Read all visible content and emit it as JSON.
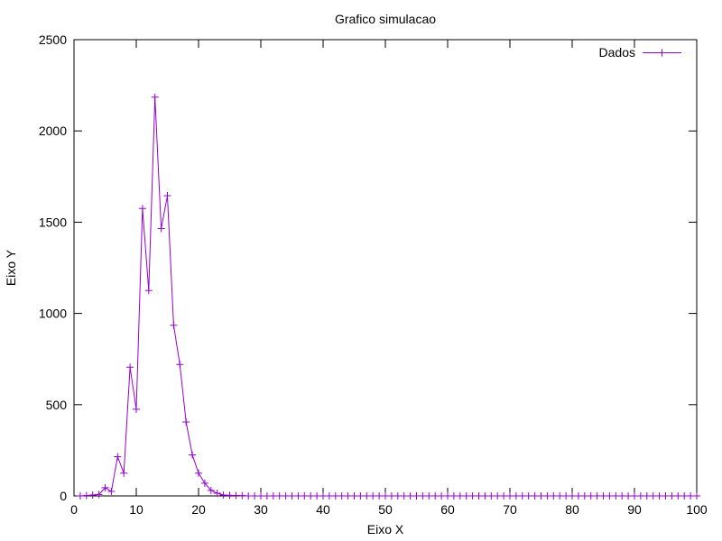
{
  "chart_data": {
    "type": "line",
    "title": "Grafico simulacao",
    "xlabel": "Eixo X",
    "ylabel": "Eixo Y",
    "xlim": [
      0,
      100
    ],
    "ylim": [
      0,
      2500
    ],
    "x_ticks": [
      "0",
      "10",
      "20",
      "30",
      "40",
      "50",
      "60",
      "70",
      "80",
      "90",
      "100"
    ],
    "y_ticks": [
      "0",
      "500",
      "1000",
      "1500",
      "2000",
      "2500"
    ],
    "grid": false,
    "legend_position": "top-right",
    "series": [
      {
        "name": "Dados",
        "color": "#9400d3",
        "marker": "plus",
        "x": [
          1,
          2,
          3,
          4,
          5,
          6,
          7,
          8,
          9,
          10,
          11,
          12,
          13,
          14,
          15,
          16,
          17,
          18,
          19,
          20,
          21,
          22,
          23,
          24,
          25,
          26,
          27,
          28,
          29,
          30,
          31,
          32,
          33,
          34,
          35,
          36,
          37,
          38,
          39,
          40,
          41,
          42,
          43,
          44,
          45,
          46,
          47,
          48,
          49,
          50,
          51,
          52,
          53,
          54,
          55,
          56,
          57,
          58,
          59,
          60,
          61,
          62,
          63,
          64,
          65,
          66,
          67,
          68,
          69,
          70,
          71,
          72,
          73,
          74,
          75,
          76,
          77,
          78,
          79,
          80,
          81,
          82,
          83,
          84,
          85,
          86,
          87,
          88,
          89,
          90,
          91,
          92,
          93,
          94,
          95,
          96,
          97,
          98,
          99,
          100
        ],
        "y": [
          0,
          2,
          5,
          8,
          45,
          25,
          215,
          125,
          705,
          475,
          1575,
          1125,
          2185,
          1465,
          1645,
          935,
          720,
          405,
          225,
          125,
          70,
          30,
          15,
          5,
          3,
          2,
          1,
          0,
          0,
          0,
          0,
          0,
          0,
          0,
          0,
          0,
          0,
          0,
          0,
          0,
          0,
          0,
          0,
          0,
          0,
          0,
          0,
          0,
          0,
          0,
          0,
          0,
          0,
          0,
          0,
          0,
          0,
          0,
          0,
          0,
          0,
          0,
          0,
          0,
          0,
          0,
          0,
          0,
          0,
          0,
          0,
          0,
          0,
          0,
          0,
          0,
          0,
          0,
          0,
          0,
          0,
          0,
          0,
          0,
          0,
          0,
          0,
          0,
          0,
          0,
          0,
          0,
          0,
          0,
          0,
          0,
          0,
          0,
          0,
          0
        ]
      }
    ]
  }
}
